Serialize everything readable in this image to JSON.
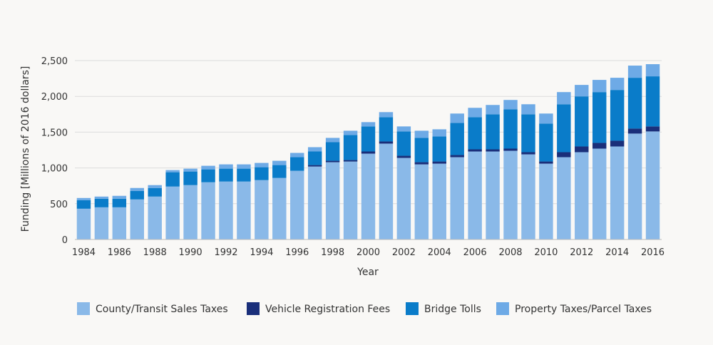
{
  "chart_data": {
    "type": "bar",
    "stacked": true,
    "title": "",
    "xlabel": "Year",
    "ylabel": "Funding [Millions of 2016 dollars]",
    "ylim": [
      0,
      2500
    ],
    "yticks": [
      0,
      500,
      1000,
      1500,
      2000,
      2500
    ],
    "ytick_labels": [
      "0",
      "500",
      "1,000",
      "1,500",
      "2,000",
      "2,500"
    ],
    "grid": "horizontal",
    "legend_position": "bottom",
    "categories": [
      "1984",
      "1985",
      "1986",
      "1987",
      "1988",
      "1989",
      "1990",
      "1991",
      "1992",
      "1993",
      "1994",
      "1995",
      "1996",
      "1997",
      "1998",
      "1999",
      "2000",
      "2001",
      "2002",
      "2003",
      "2004",
      "2005",
      "2006",
      "2007",
      "2008",
      "2009",
      "2010",
      "2011",
      "2012",
      "2013",
      "2014",
      "2015",
      "2016"
    ],
    "xtick_labels": [
      "1984",
      "1986",
      "1988",
      "1990",
      "1992",
      "1994",
      "1996",
      "1998",
      "2000",
      "2002",
      "2004",
      "2006",
      "2008",
      "2010",
      "2012",
      "2014",
      "2016"
    ],
    "series": [
      {
        "name": "County/Transit Sales Taxes",
        "color": "#8ab9e8",
        "values": [
          430,
          450,
          450,
          560,
          600,
          740,
          760,
          800,
          810,
          810,
          830,
          860,
          960,
          1020,
          1080,
          1090,
          1200,
          1340,
          1140,
          1050,
          1060,
          1150,
          1230,
          1230,
          1240,
          1190,
          1060,
          1150,
          1220,
          1270,
          1300,
          1480,
          1510
        ]
      },
      {
        "name": "Vehicle Registration Fees",
        "color": "#1a2f7a",
        "values": [
          0,
          0,
          0,
          0,
          0,
          0,
          0,
          0,
          0,
          0,
          0,
          0,
          0,
          20,
          20,
          20,
          30,
          30,
          30,
          30,
          30,
          30,
          30,
          30,
          30,
          30,
          30,
          70,
          80,
          80,
          80,
          70,
          70
        ]
      },
      {
        "name": "Bridge Tolls",
        "color": "#0a7cc9",
        "values": [
          120,
          120,
          120,
          120,
          120,
          200,
          190,
          180,
          180,
          180,
          180,
          180,
          190,
          190,
          260,
          350,
          350,
          340,
          340,
          340,
          350,
          450,
          450,
          490,
          550,
          530,
          530,
          670,
          700,
          710,
          710,
          710,
          700
        ]
      },
      {
        "name": "Property Taxes/Parcel Taxes",
        "color": "#6eaae6",
        "values": [
          30,
          30,
          40,
          40,
          40,
          30,
          40,
          50,
          60,
          60,
          60,
          60,
          60,
          60,
          60,
          60,
          60,
          70,
          70,
          100,
          100,
          130,
          130,
          130,
          130,
          140,
          140,
          170,
          160,
          170,
          170,
          170,
          170
        ]
      }
    ]
  }
}
